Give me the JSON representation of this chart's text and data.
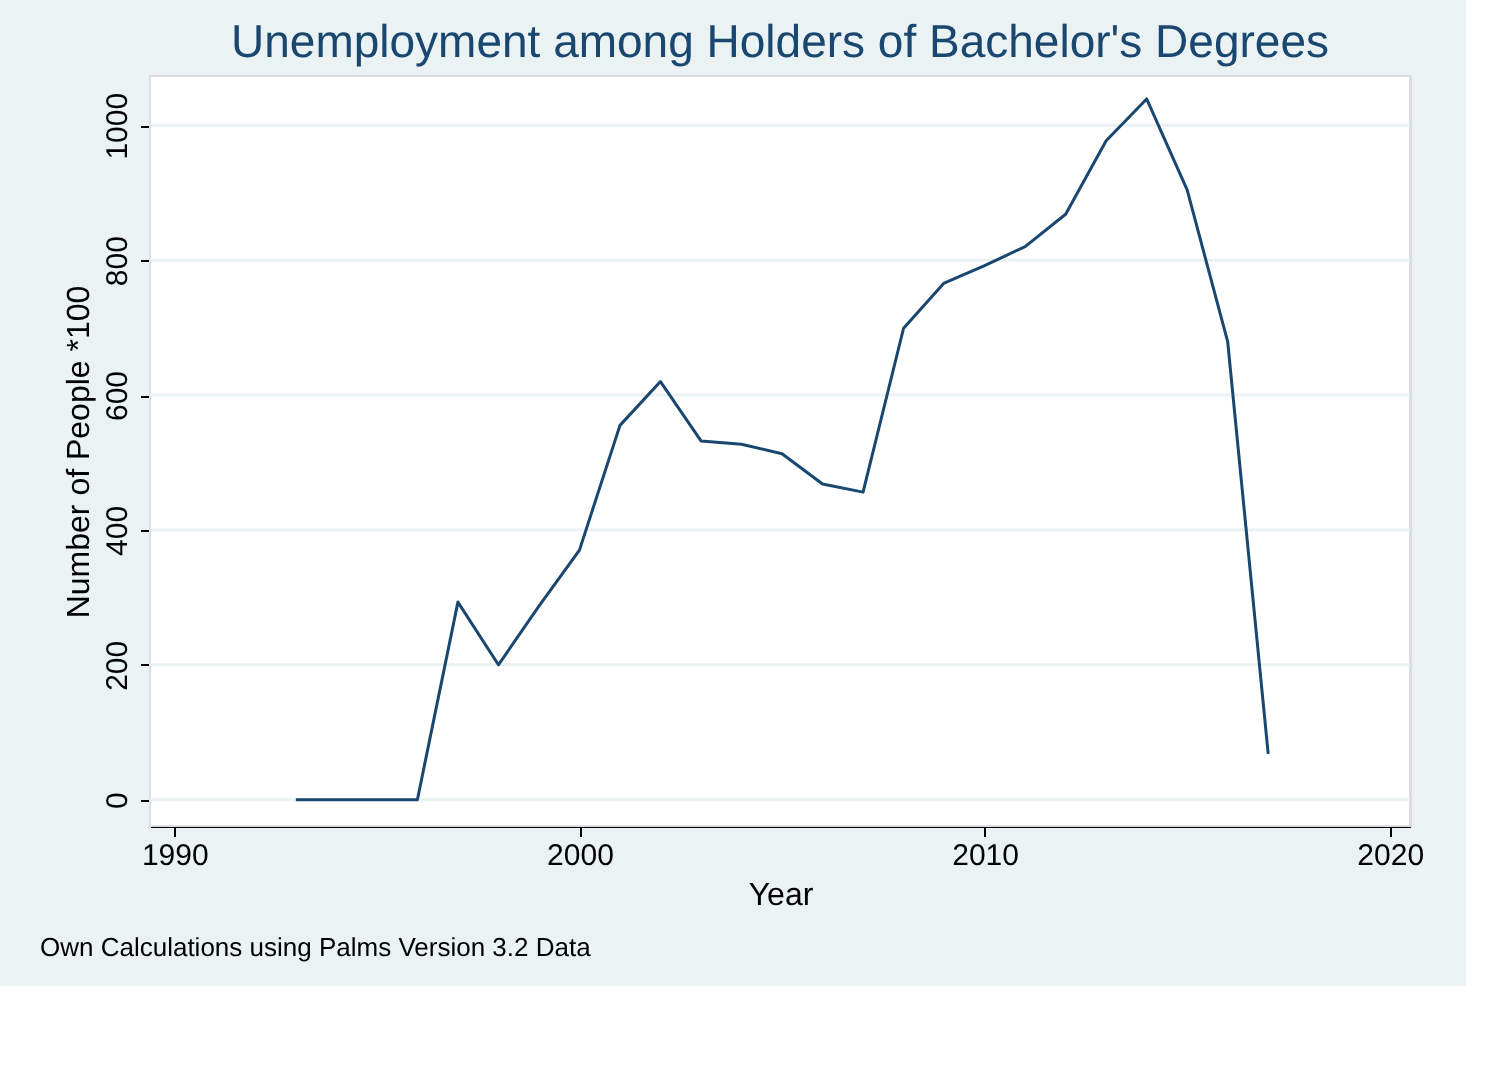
{
  "chart_data": {
    "type": "line",
    "title": "Unemployment among Holders of Bachelor's Degrees",
    "xlabel": "Year",
    "ylabel": "Number of People *100",
    "x": [
      1993,
      1994,
      1995,
      1996,
      1997,
      1998,
      1999,
      2000,
      2001,
      2002,
      2003,
      2004,
      2005,
      2006,
      2007,
      2008,
      2009,
      2010,
      2011,
      2012,
      2013,
      2014,
      2015,
      2016,
      2017
    ],
    "series": [
      {
        "color": "#1a476f",
        "values": [
          0,
          0,
          0,
          0,
          293,
          200,
          287,
          370,
          555,
          620,
          532,
          527,
          513,
          468,
          456,
          699,
          766,
          792,
          820,
          868,
          977,
          1039,
          904,
          679,
          68
        ]
      }
    ],
    "xlim": [
      1989.4,
      2020.5
    ],
    "xticks": [
      1990,
      2000,
      2010,
      2020
    ],
    "ylim": [
      -39,
      1073
    ],
    "yticks": [
      0,
      200,
      400,
      600,
      800,
      1000
    ],
    "grid": "y",
    "marker": "none",
    "line_style": "solid",
    "annotations": [
      "Own Calculations using Palms Version 3.2 Data"
    ]
  }
}
